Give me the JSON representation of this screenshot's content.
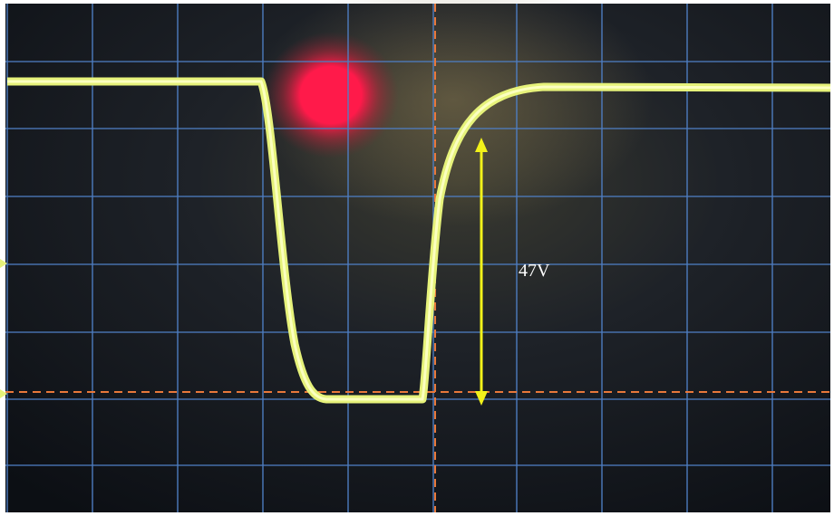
{
  "annotation": "47V"
}
